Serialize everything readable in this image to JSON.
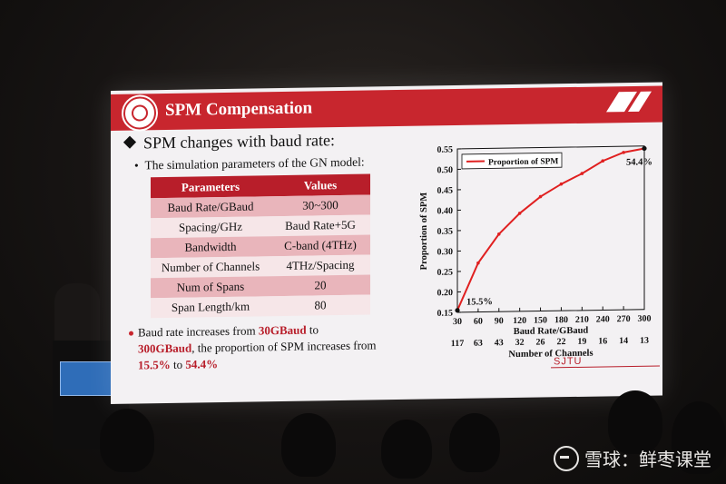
{
  "slide": {
    "title": "SPM Compensation",
    "heading": "SPM changes with baud rate:",
    "subheading": "The simulation parameters of the GN model:",
    "table": {
      "headers": [
        "Parameters",
        "Values"
      ],
      "rows": [
        [
          "Baud Rate/GBaud",
          "30~300"
        ],
        [
          "Spacing/GHz",
          "Baud Rate+5G"
        ],
        [
          "Bandwidth",
          "C-band (4THz)"
        ],
        [
          "Number of Channels",
          "4THz/Spacing"
        ],
        [
          "Num of Spans",
          "20"
        ],
        [
          "Span Length/km",
          "80"
        ]
      ]
    },
    "summary": {
      "t1": "Baud rate  increases from ",
      "h1": "30GBaud",
      "t2": " to ",
      "h2": "300GBaud",
      "t3": ", the proportion of SPM increases from ",
      "h3": "15.5%",
      "t4": " to ",
      "h4": "54.4%"
    },
    "footer_logo": "SJTU"
  },
  "chart_data": {
    "type": "line",
    "title": "",
    "xlabel": "Baud Rate/GBaud",
    "xlabel2": "Number of Channels",
    "ylabel": "Proportion of SPM",
    "x": [
      30,
      60,
      90,
      120,
      150,
      180,
      210,
      240,
      270,
      300
    ],
    "x2": [
      117,
      63,
      43,
      32,
      26,
      22,
      19,
      16,
      14,
      13
    ],
    "ylim": [
      0.15,
      0.55
    ],
    "yticks": [
      "0.15",
      "0.20",
      "0.25",
      "0.30",
      "0.35",
      "0.40",
      "0.45",
      "0.50",
      "0.55"
    ],
    "series": [
      {
        "name": "Proportion of SPM",
        "values": [
          0.155,
          0.27,
          0.34,
          0.39,
          0.43,
          0.46,
          0.485,
          0.515,
          0.535,
          0.544
        ]
      }
    ],
    "annotations": [
      "15.5%",
      "54.4%"
    ],
    "legend": "top-left",
    "grid": false,
    "colors": {
      "line": "#e02020",
      "marker_endpoints": "#111111"
    }
  },
  "watermark": {
    "text": "雪球：鲜枣课堂",
    "icon": "snowball-logo-icon"
  }
}
